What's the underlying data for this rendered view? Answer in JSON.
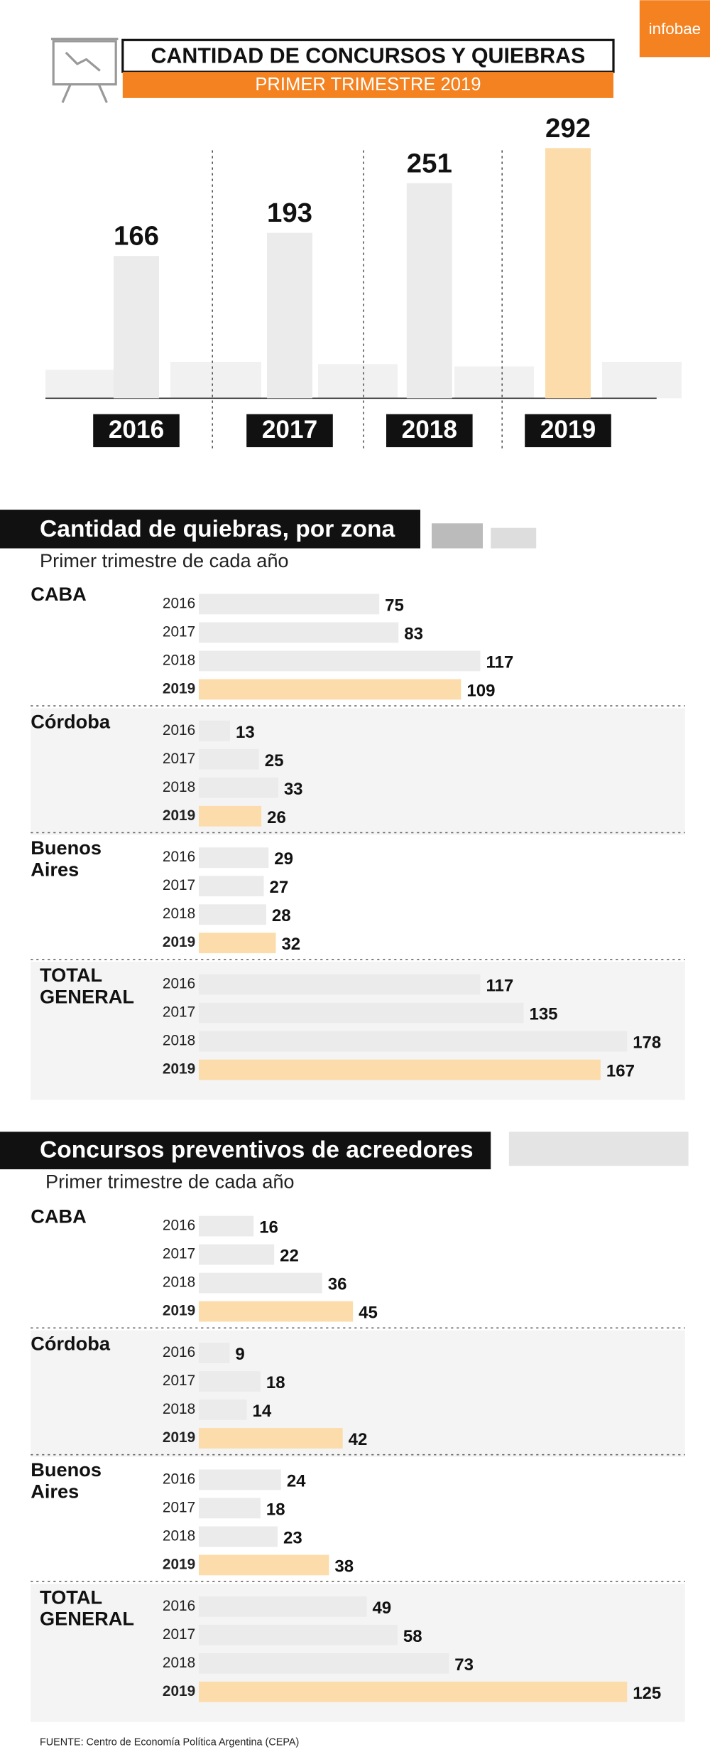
{
  "brand": "infobae",
  "chart_data": [
    {
      "type": "bar",
      "title": "CANTIDAD DE CONCURSOS Y QUIEBRAS",
      "subtitle": "PRIMER TRIMESTRE 2019",
      "categories": [
        "2016",
        "2017",
        "2018",
        "2019"
      ],
      "values": [
        166,
        193,
        251,
        292
      ],
      "colors": [
        "#ebebeb",
        "#ebebeb",
        "#ebebeb",
        "#fcdcaa"
      ]
    },
    {
      "type": "hbar-groups",
      "title": "Cantidad de quiebras, por zona",
      "subtitle": "Primer trimestre de cada año",
      "categories": [
        "2016",
        "2017",
        "2018",
        "2019"
      ],
      "colors": [
        "#ebebeb",
        "#ebebeb",
        "#ebebeb",
        "#fcdcaa"
      ],
      "groups": [
        {
          "name": "CABA",
          "values": [
            75,
            83,
            117,
            109
          ]
        },
        {
          "name": "Córdoba",
          "values": [
            13,
            25,
            33,
            26
          ]
        },
        {
          "name": "Buenos Aires",
          "values": [
            29,
            27,
            28,
            32
          ]
        },
        {
          "name": "TOTAL GENERAL",
          "values": [
            117,
            135,
            178,
            167
          ]
        }
      ]
    },
    {
      "type": "hbar-groups",
      "title": "Concursos preventivos de acreedores",
      "subtitle": "Primer trimestre de cada año",
      "categories": [
        "2016",
        "2017",
        "2018",
        "2019"
      ],
      "colors": [
        "#ebebeb",
        "#ebebeb",
        "#ebebeb",
        "#fcdcaa"
      ],
      "groups": [
        {
          "name": "CABA",
          "values": [
            16,
            22,
            36,
            45
          ]
        },
        {
          "name": "Córdoba",
          "values": [
            9,
            18,
            14,
            42
          ]
        },
        {
          "name": "Buenos Aires",
          "values": [
            24,
            18,
            23,
            38
          ]
        },
        {
          "name": "TOTAL GENERAL",
          "values": [
            49,
            58,
            73,
            125
          ]
        }
      ]
    }
  ],
  "source": "FUENTE: Centro de Economía Política Argentina (CEPA)"
}
